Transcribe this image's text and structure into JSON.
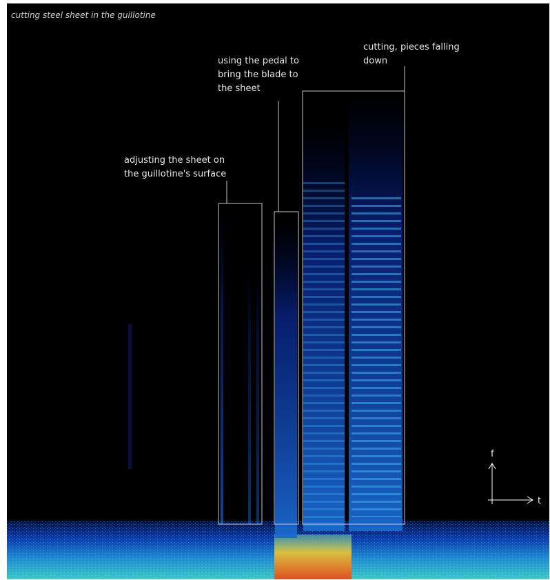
{
  "title": "cutting steel sheet in the guillotine",
  "annotations": [
    {
      "lines": [
        "adjusting the sheet on",
        "the guillotine's surface"
      ]
    },
    {
      "lines": [
        "using the pedal to",
        "bring the blade to",
        "the sheet"
      ]
    },
    {
      "lines": [
        "cutting, pieces falling",
        "down"
      ]
    }
  ],
  "axes": {
    "y_label": "f",
    "x_label": "t"
  }
}
